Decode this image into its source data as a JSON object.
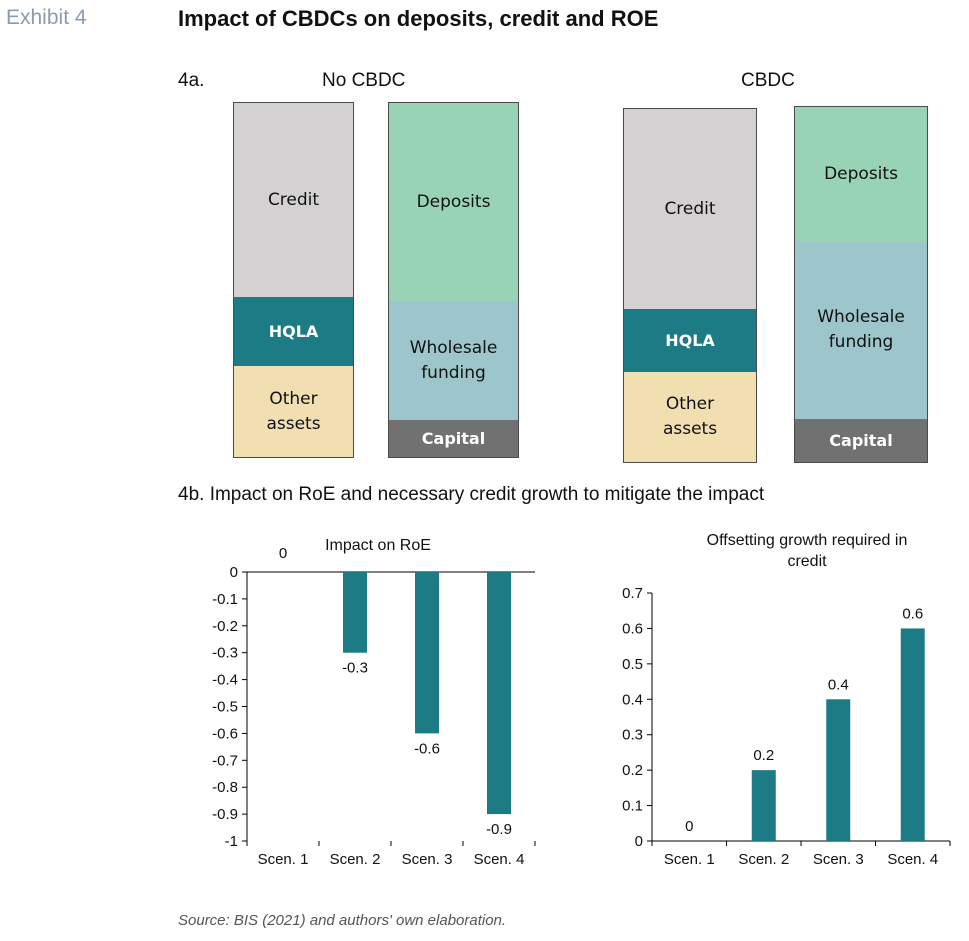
{
  "exhibit_label": "Exhibit 4",
  "title": "Impact of CBDCs on deposits, credit and ROE",
  "panel_4a": {
    "label": "4a.",
    "no_cbdc": {
      "title": "No CBDC",
      "assets": {
        "credit": "Credit",
        "hqla": "HQLA",
        "other_assets_line1": "Other",
        "other_assets_line2": "assets"
      },
      "liabilities": {
        "deposits": "Deposits",
        "wholesale_line1": "Wholesale",
        "wholesale_line2": "funding",
        "capital": "Capital"
      }
    },
    "cbdc": {
      "title": "CBDC",
      "assets": {
        "credit": "Credit",
        "hqla": "HQLA",
        "other_assets_line1": "Other",
        "other_assets_line2": "assets"
      },
      "liabilities": {
        "deposits": "Deposits",
        "wholesale_line1": "Wholesale",
        "wholesale_line2": "funding",
        "capital": "Capital"
      }
    }
  },
  "panel_4b_label": "4b. Impact on RoE and necessary credit growth to mitigate the impact",
  "source": "Source: BIS (2021) and authors' own elaboration.",
  "colors": {
    "bar": "#1d7b85",
    "axis": "#000000"
  },
  "chart_data": [
    {
      "type": "bar",
      "title": "Impact on RoE",
      "categories": [
        "Scen. 1",
        "Scen. 2",
        "Scen. 3",
        "Scen. 4"
      ],
      "values": [
        0,
        -0.3,
        -0.6,
        -0.9
      ],
      "data_labels": [
        "0",
        "-0.3",
        "-0.6",
        "-0.9"
      ],
      "ylim": [
        -1,
        0
      ],
      "yticks": [
        "0",
        "-0.1",
        "-0.2",
        "-0.3",
        "-0.4",
        "-0.5",
        "-0.6",
        "-0.7",
        "-0.8",
        "-0.9",
        "-1"
      ],
      "ytick_values": [
        0,
        -0.1,
        -0.2,
        -0.3,
        -0.4,
        -0.5,
        -0.6,
        -0.7,
        -0.8,
        -0.9,
        -1
      ],
      "grid": false,
      "legend": "none"
    },
    {
      "type": "bar",
      "title_line1": "Offsetting growth required in",
      "title_line2": "credit",
      "categories": [
        "Scen. 1",
        "Scen. 2",
        "Scen. 3",
        "Scen. 4"
      ],
      "values": [
        0,
        0.2,
        0.4,
        0.6
      ],
      "data_labels": [
        "0",
        "0.2",
        "0.4",
        "0.6"
      ],
      "ylim": [
        0,
        0.7
      ],
      "yticks": [
        "0",
        "0.1",
        "0.2",
        "0.3",
        "0.4",
        "0.5",
        "0.6",
        "0.7"
      ],
      "ytick_values": [
        0,
        0.1,
        0.2,
        0.3,
        0.4,
        0.5,
        0.6,
        0.7
      ],
      "grid": false,
      "legend": "none"
    }
  ]
}
